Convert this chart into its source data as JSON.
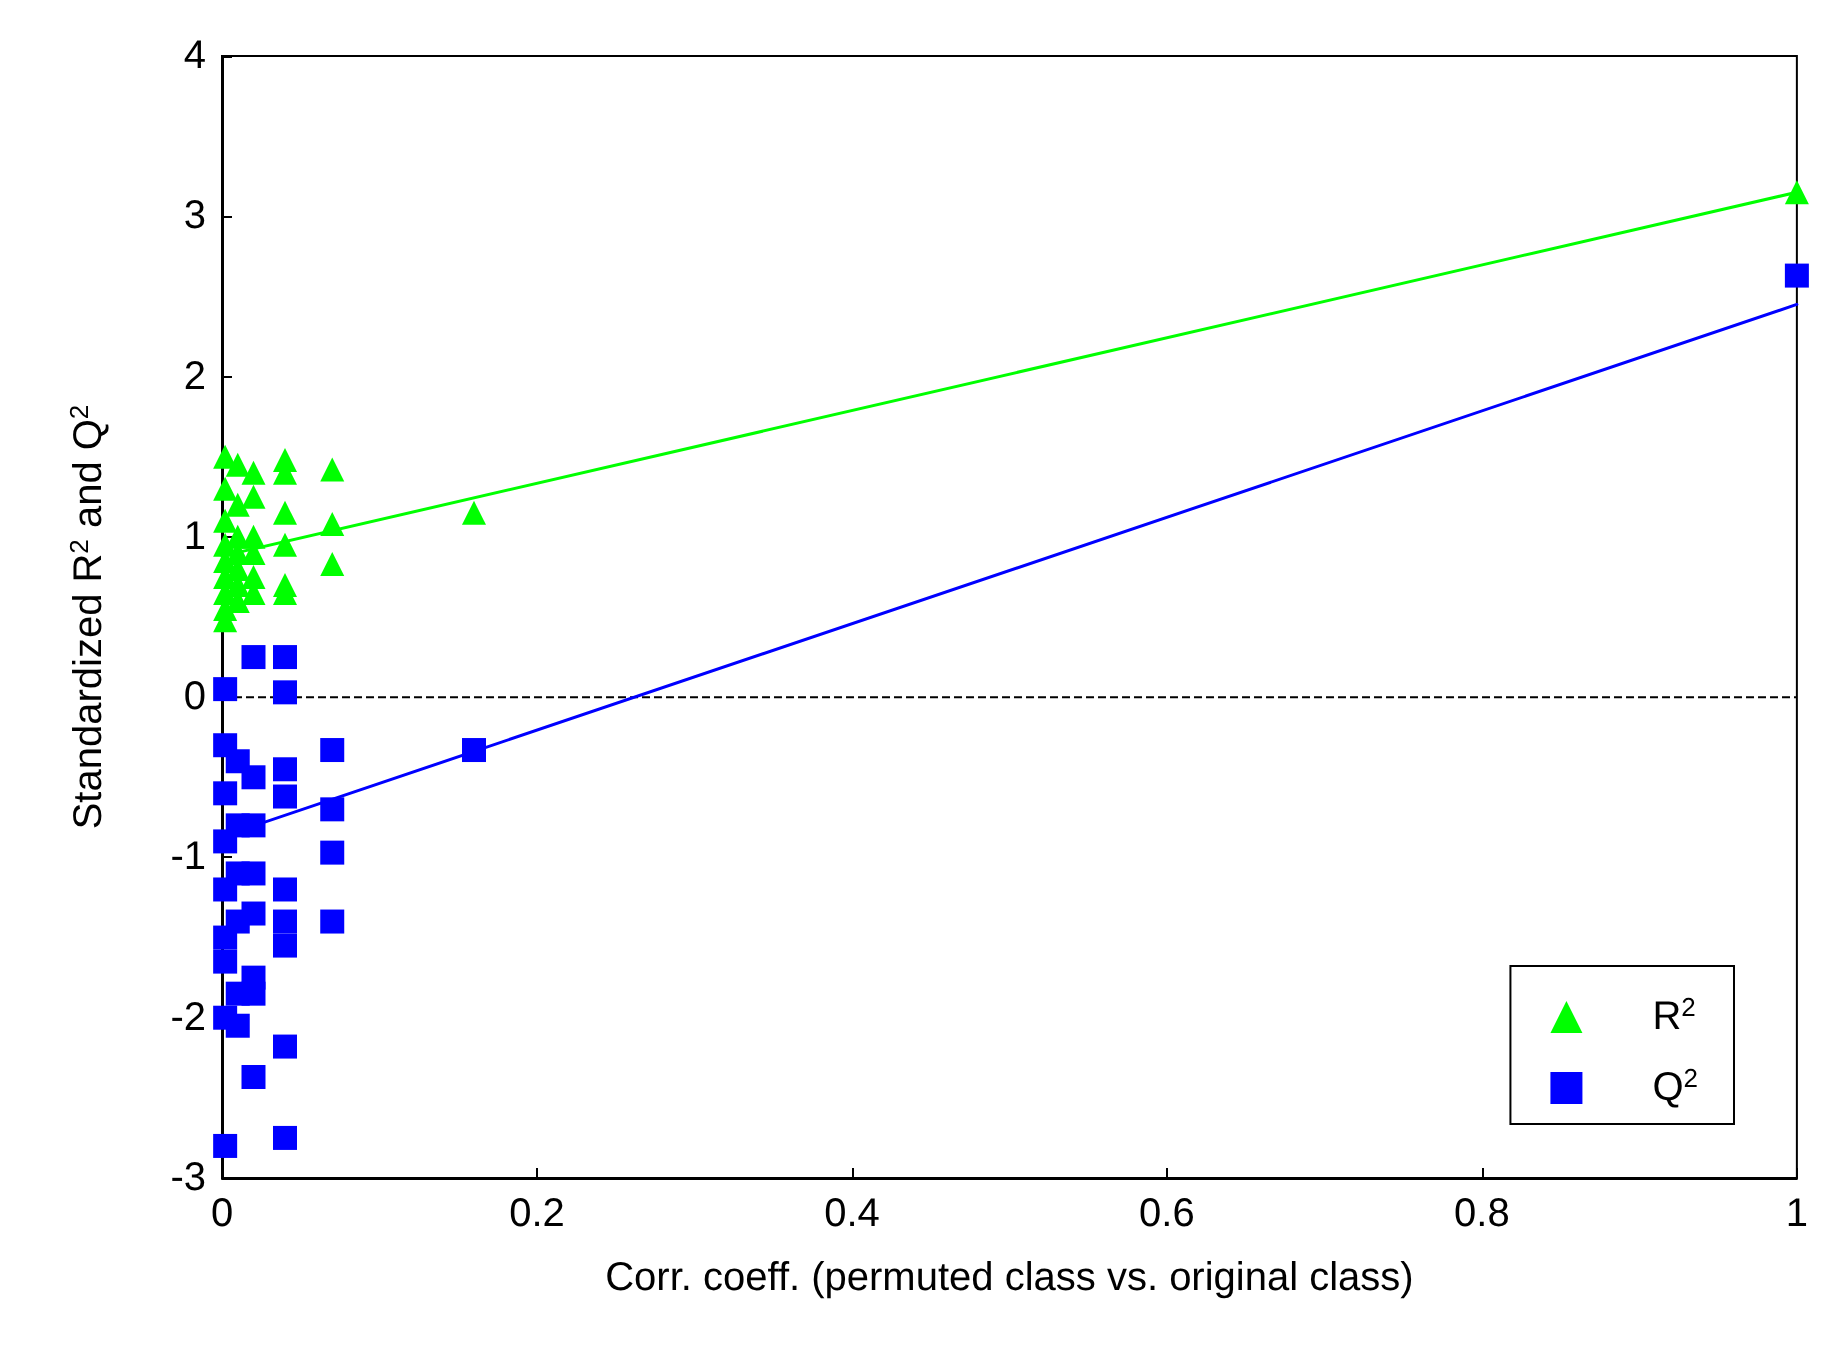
{
  "chart_data": {
    "type": "scatter",
    "xlabel": "Corr. coeff. (permuted class vs. original class)",
    "ylabel": "Standardized R$^{2}$ and Q$^{2}$",
    "xlim": [
      0,
      1
    ],
    "xticks": [
      0,
      0.2,
      0.4,
      0.6,
      0.8,
      1
    ],
    "ylim": [
      -3,
      4
    ],
    "yticks": [
      -3,
      -2,
      -1,
      0,
      1,
      2,
      3,
      4
    ],
    "grid": false,
    "legend": "bottom right",
    "series": [
      {
        "name": "R$^{2}$",
        "color": "#00ff00",
        "marker": "triangle",
        "x": [
          0.002,
          0.002,
          0.002,
          0.002,
          0.002,
          0.002,
          0.002,
          0.002,
          0.002,
          0.01,
          0.01,
          0.01,
          0.01,
          0.01,
          0.01,
          0.01,
          0.02,
          0.02,
          0.02,
          0.02,
          0.02,
          0.02,
          0.04,
          0.04,
          0.04,
          0.04,
          0.04,
          0.04,
          0.07,
          0.07,
          0.07,
          0.16,
          1
        ],
        "values": [
          1.5,
          1.3,
          1.1,
          0.95,
          0.85,
          0.75,
          0.65,
          0.55,
          0.48,
          1.45,
          1.2,
          1.0,
          0.9,
          0.8,
          0.7,
          0.6,
          1.4,
          1.25,
          1.0,
          0.9,
          0.75,
          0.65,
          1.48,
          1.4,
          1.15,
          0.95,
          0.7,
          0.65,
          1.42,
          1.08,
          0.83,
          1.15,
          3.15
        ]
      },
      {
        "name": "Q$^{2}$",
        "color": "#0000ff",
        "marker": "square",
        "x": [
          0.002,
          0.002,
          0.002,
          0.002,
          0.002,
          0.002,
          0.002,
          0.002,
          0.002,
          0.01,
          0.01,
          0.01,
          0.01,
          0.01,
          0.01,
          0.02,
          0.02,
          0.02,
          0.02,
          0.02,
          0.02,
          0.02,
          0.02,
          0.04,
          0.04,
          0.04,
          0.04,
          0.04,
          0.04,
          0.04,
          0.04,
          0.04,
          0.07,
          0.07,
          0.07,
          0.07,
          0.16,
          1
        ],
        "values": [
          0.05,
          -0.3,
          -0.6,
          -0.9,
          -1.2,
          -1.5,
          -1.65,
          -2.0,
          -2.8,
          -0.4,
          -0.8,
          -1.1,
          -1.4,
          -1.85,
          -2.05,
          0.25,
          -0.5,
          -0.8,
          -1.1,
          -1.35,
          -1.75,
          -1.85,
          -2.37,
          0.25,
          0.03,
          -0.45,
          -0.62,
          -1.2,
          -1.4,
          -1.55,
          -2.18,
          -2.75,
          -0.33,
          -0.7,
          -0.97,
          -1.4,
          -0.33,
          2.63
        ]
      },
      {
        "type": "line",
        "color": "#00ff00",
        "marker": "none",
        "x": [
          0,
          1
        ],
        "values": [
          0.88,
          3.15
        ]
      },
      {
        "type": "line",
        "color": "#0000ff",
        "marker": "none",
        "x": [
          0,
          1
        ],
        "values": [
          -0.87,
          2.45
        ]
      }
    ],
    "ref_lines": [
      {
        "axis": "y",
        "value": 0,
        "color": "#000000",
        "line_style": "dashed"
      }
    ]
  }
}
